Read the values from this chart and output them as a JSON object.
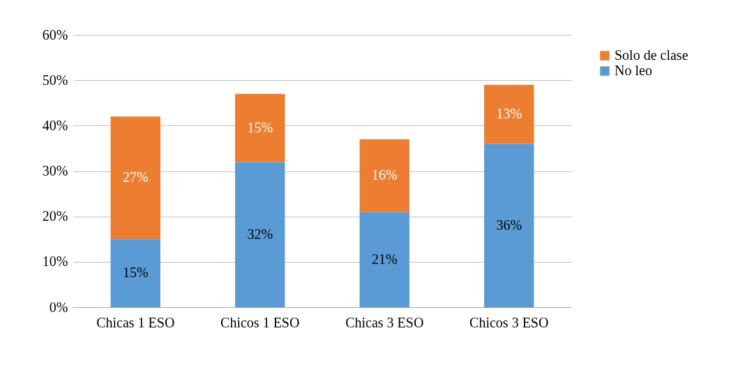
{
  "chart_data": {
    "type": "bar",
    "stacked": true,
    "categories": [
      "Chicas 1 ESO",
      "Chicos 1 ESO",
      "Chicas 3 ESO",
      "Chicos 3 ESO"
    ],
    "series": [
      {
        "name": "No leo",
        "color": "#5b9bd5",
        "values": [
          15,
          32,
          21,
          36
        ],
        "value_labels": [
          "15%",
          "32%",
          "21%",
          "36%"
        ]
      },
      {
        "name": "Solo de clase",
        "color": "#ed7d31",
        "values": [
          27,
          15,
          16,
          13
        ],
        "value_labels": [
          "27%",
          "15%",
          "16%",
          "13%"
        ]
      }
    ],
    "ylim": [
      0,
      60
    ],
    "yticks": [
      {
        "value": 0,
        "label": "0%"
      },
      {
        "value": 10,
        "label": "10%"
      },
      {
        "value": 20,
        "label": "20%"
      },
      {
        "value": 30,
        "label": "30%"
      },
      {
        "value": 40,
        "label": "40%"
      },
      {
        "value": 50,
        "label": "50%"
      },
      {
        "value": 60,
        "label": "60%"
      }
    ],
    "grid": "y",
    "legend": "right"
  }
}
